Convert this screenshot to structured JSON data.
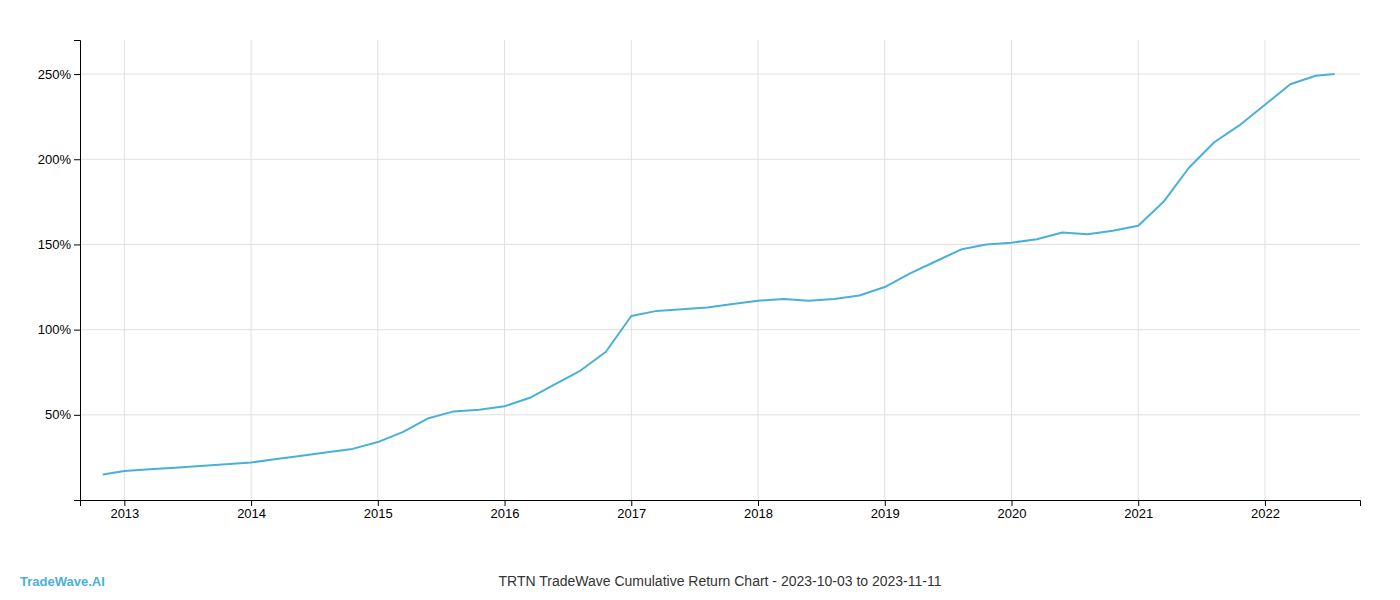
{
  "chart_data": {
    "type": "line",
    "title": "TRTN TradeWave Cumulative Return Chart - 2023-10-03 to 2023-11-11",
    "annotations": [
      {
        "text": "TradeWave.AI",
        "color": "#4ab0d9"
      }
    ],
    "color": "#4ab0d9",
    "x": [
      2012.83,
      2013.0,
      2013.2,
      2013.4,
      2013.6,
      2013.8,
      2014.0,
      2014.2,
      2014.4,
      2014.6,
      2014.8,
      2015.0,
      2015.2,
      2015.4,
      2015.6,
      2015.8,
      2016.0,
      2016.2,
      2016.4,
      2016.6,
      2016.8,
      2017.0,
      2017.2,
      2017.4,
      2017.6,
      2017.8,
      2018.0,
      2018.2,
      2018.4,
      2018.6,
      2018.8,
      2019.0,
      2019.2,
      2019.4,
      2019.6,
      2019.8,
      2020.0,
      2020.2,
      2020.4,
      2020.6,
      2020.8,
      2021.0,
      2021.2,
      2021.4,
      2021.6,
      2021.8,
      2022.0,
      2022.2,
      2022.4,
      2022.55
    ],
    "values": [
      15,
      17,
      18,
      19,
      20,
      21,
      22,
      24,
      26,
      28,
      30,
      34,
      40,
      48,
      52,
      53,
      55,
      60,
      68,
      76,
      87,
      108,
      111,
      112,
      113,
      115,
      117,
      118,
      117,
      118,
      120,
      125,
      133,
      140,
      147,
      150,
      151,
      153,
      157,
      156,
      158,
      161,
      175,
      195,
      210,
      220,
      232,
      244,
      249,
      250
    ],
    "xlim": [
      2012.65,
      2022.75
    ],
    "ylim": [
      0,
      270
    ],
    "xticks": [
      2013,
      2014,
      2015,
      2016,
      2017,
      2018,
      2019,
      2020,
      2021,
      2022
    ],
    "yticks": [
      {
        "value": 50,
        "label": "50%"
      },
      {
        "value": 100,
        "label": "100%"
      },
      {
        "value": 150,
        "label": "150%"
      },
      {
        "value": 200,
        "label": "200%"
      },
      {
        "value": 250,
        "label": "250%"
      }
    ],
    "grid": true
  }
}
